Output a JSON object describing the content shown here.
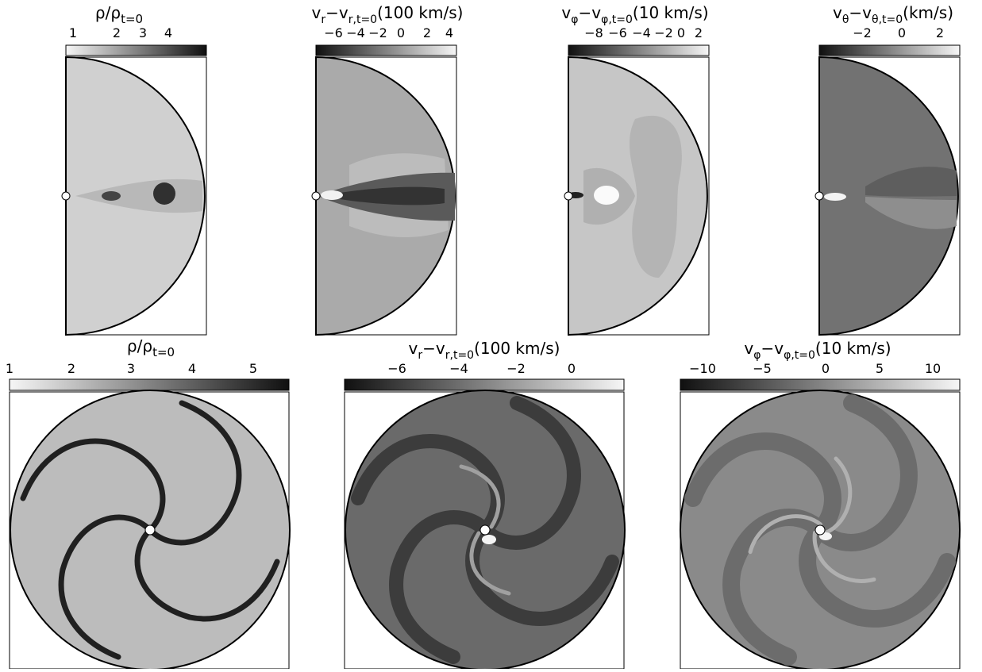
{
  "colors": {
    "background": "#ffffff",
    "axis": "#000000",
    "gray_light": "#d0d0d0",
    "gray_mid": "#a8a8a8",
    "gray_dark": "#6e6e6e",
    "colorbar_light": "#f6f6f6",
    "colorbar_dark": "#101010"
  },
  "top_panels": [
    {
      "id": "density-meridional",
      "title": "ρ/ρ_t=0",
      "title_parts": [
        "ρ/ρ",
        "t=0"
      ],
      "colorbar_ticks": [
        "1",
        "2",
        "3",
        "4"
      ],
      "colorbar_direction": "light-to-dark",
      "background_gray": "#d0d0d0",
      "icon": "density-meridional-map"
    },
    {
      "id": "vr-meridional",
      "title": "v_r−v_r,t=0 (100 km/s)",
      "title_parts": [
        "v",
        "r",
        "−v",
        "r,t=0",
        "(100 km/s)"
      ],
      "colorbar_ticks": [
        "−6",
        "−4",
        "−2",
        "0",
        "2",
        "4"
      ],
      "colorbar_direction": "dark-to-light",
      "background_gray": "#aaaaaa",
      "icon": "radial-velocity-meridional-map"
    },
    {
      "id": "vphi-meridional",
      "title": "v_φ−v_φ,t=0 (10 km/s)",
      "title_parts": [
        "v",
        "φ",
        "−v",
        "φ,t=0",
        "(10 km/s)"
      ],
      "colorbar_ticks": [
        "−8",
        "−6",
        "−4",
        "−2",
        "0",
        "2"
      ],
      "colorbar_direction": "dark-to-light",
      "background_gray": "#c6c6c6",
      "icon": "azimuthal-velocity-meridional-map"
    },
    {
      "id": "vtheta-meridional",
      "title": "v_θ−v_θ,t=0 (km/s)",
      "title_parts": [
        "v",
        "θ",
        "−v",
        "θ,t=0",
        "(km/s)"
      ],
      "colorbar_ticks": [
        "−2",
        "0",
        "2"
      ],
      "colorbar_direction": "dark-to-light",
      "background_gray": "#727272",
      "icon": "polar-velocity-meridional-map"
    }
  ],
  "bottom_panels": [
    {
      "id": "density-equatorial",
      "title": "ρ/ρ_t=0",
      "title_parts": [
        "ρ/ρ",
        "t=0"
      ],
      "colorbar_ticks": [
        "1",
        "2",
        "3",
        "4",
        "5"
      ],
      "colorbar_direction": "light-to-dark",
      "disk_base": "#bcbcbc",
      "arm_color": "#202020",
      "icon": "density-spiral-map"
    },
    {
      "id": "vr-equatorial",
      "title": "v_r−v_r,t=0 (100 km/s)",
      "title_parts": [
        "v",
        "r",
        "−v",
        "r,t=0",
        "(100 km/s)"
      ],
      "colorbar_ticks": [
        "−6",
        "−4",
        "−2",
        "0"
      ],
      "colorbar_direction": "dark-to-light",
      "disk_base": "#6a6a6a",
      "arm_color": "#3c3c3c",
      "icon": "radial-velocity-spiral-map"
    },
    {
      "id": "vphi-equatorial",
      "title": "v_φ−v_φ,t=0 (10 km/s)",
      "title_parts": [
        "v",
        "φ",
        "−v",
        "φ,t=0",
        "(10 km/s)"
      ],
      "colorbar_ticks": [
        "−10",
        "−5",
        "0",
        "5",
        "10"
      ],
      "colorbar_direction": "dark-to-light",
      "disk_base": "#8a8a8a",
      "arm_color": "#6c6c6c",
      "icon": "azimuthal-velocity-spiral-map"
    }
  ]
}
